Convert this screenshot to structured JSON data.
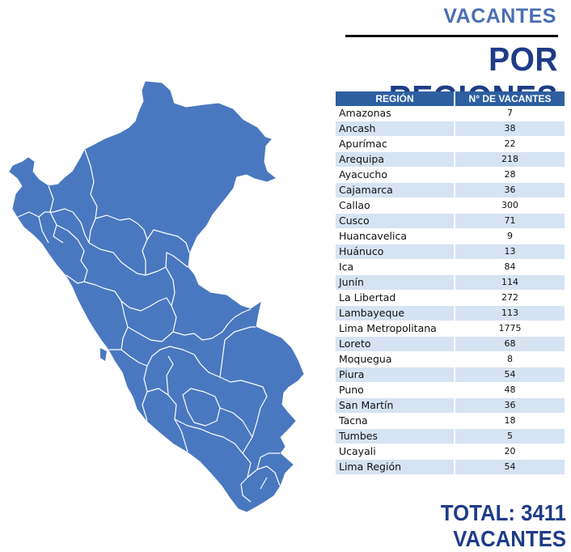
{
  "subtitle": "VACANTES",
  "title": "POR REGIONES",
  "table": {
    "headers": [
      "REGIÓN",
      "N° DE VACANTES"
    ],
    "rows": [
      {
        "region": "Amazonas",
        "vacantes": "7"
      },
      {
        "region": "Ancash",
        "vacantes": "38"
      },
      {
        "region": "Apurímac",
        "vacantes": "22"
      },
      {
        "region": "Arequipa",
        "vacantes": "218"
      },
      {
        "region": "Ayacucho",
        "vacantes": "28"
      },
      {
        "region": "Cajamarca",
        "vacantes": "36"
      },
      {
        "region": "Callao",
        "vacantes": "300"
      },
      {
        "region": "Cusco",
        "vacantes": "71"
      },
      {
        "region": "Huancavelica",
        "vacantes": "9"
      },
      {
        "region": "Huánuco",
        "vacantes": "13"
      },
      {
        "region": "Ica",
        "vacantes": "84"
      },
      {
        "region": "Junín",
        "vacantes": "114"
      },
      {
        "region": "La Libertad",
        "vacantes": "272"
      },
      {
        "region": "Lambayeque",
        "vacantes": "113"
      },
      {
        "region": "Lima Metropolitana",
        "vacantes": "1775"
      },
      {
        "region": "Loreto",
        "vacantes": "68"
      },
      {
        "region": "Moquegua",
        "vacantes": "8"
      },
      {
        "region": "Piura",
        "vacantes": "54"
      },
      {
        "region": "Puno",
        "vacantes": "48"
      },
      {
        "region": "San Martín",
        "vacantes": "36"
      },
      {
        "region": "Tacna",
        "vacantes": "18"
      },
      {
        "region": "Tumbes",
        "vacantes": "5"
      },
      {
        "region": "Ucayali",
        "vacantes": "20"
      },
      {
        "region": "Lima Región",
        "vacantes": "54"
      }
    ]
  },
  "total": "TOTAL: 3411 VACANTES",
  "colors": {
    "map_fill": "#4a78c0",
    "map_stroke": "#ffffff",
    "header_bg": "#2e5fa0",
    "stripe": "#d6e3f3",
    "title": "#1f3c88",
    "subtitle": "#4a6fb3"
  }
}
